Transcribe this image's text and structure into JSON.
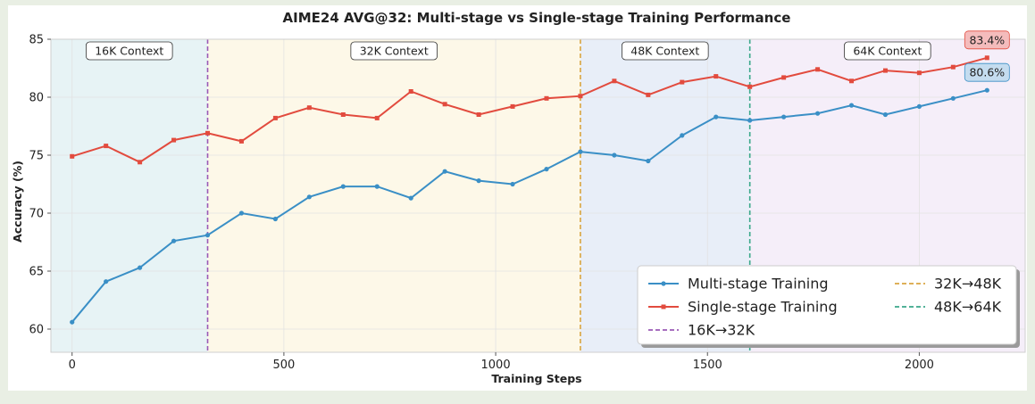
{
  "chart_data": {
    "type": "line",
    "title": "AIME24 AVG@32: Multi-stage vs Single-stage Training Performance",
    "xlabel": "Training Steps",
    "ylabel": "Accuracy (%)",
    "xlim": [
      -50,
      2250
    ],
    "ylim": [
      58,
      85
    ],
    "xticks": [
      0,
      500,
      1000,
      1500,
      2000
    ],
    "yticks": [
      60,
      65,
      70,
      75,
      80,
      85
    ],
    "grid": true,
    "legend_position": "bottom-right",
    "x": [
      0,
      80,
      160,
      240,
      320,
      400,
      480,
      560,
      640,
      720,
      800,
      880,
      960,
      1040,
      1120,
      1200,
      1280,
      1360,
      1440,
      1520,
      1600,
      1680,
      1760,
      1840,
      1920,
      2000,
      2080,
      2160
    ],
    "series": [
      {
        "name": "Multi-stage Training",
        "color": "#3a8fc6",
        "marker": "circle",
        "values": [
          60.6,
          64.1,
          65.3,
          67.6,
          68.1,
          70.0,
          69.5,
          71.4,
          72.3,
          72.3,
          71.3,
          73.6,
          72.8,
          72.5,
          73.8,
          75.3,
          75.0,
          74.5,
          76.7,
          78.3,
          78.0,
          78.3,
          78.6,
          79.3,
          78.5,
          79.2,
          79.9,
          80.6
        ]
      },
      {
        "name": "Single-stage Training",
        "color": "#e24b3e",
        "marker": "square",
        "values": [
          74.9,
          75.8,
          74.4,
          76.3,
          76.9,
          76.2,
          78.2,
          79.1,
          78.5,
          78.2,
          80.5,
          79.4,
          78.5,
          79.2,
          79.9,
          80.1,
          81.4,
          80.2,
          81.3,
          81.8,
          80.9,
          81.7,
          82.4,
          81.4,
          82.3,
          82.1,
          82.6,
          83.4
        ]
      }
    ],
    "stage_boundaries": [
      {
        "x": 320,
        "name": "16K→32K",
        "color": "#9b59b6"
      },
      {
        "x": 1200,
        "name": "32K→48K",
        "color": "#d9a540"
      },
      {
        "x": 1600,
        "name": "48K→64K",
        "color": "#3aa88a"
      }
    ],
    "stage_regions": [
      {
        "from": -50,
        "to": 320,
        "label": "16K Context",
        "fill": "#e7f3f5"
      },
      {
        "from": 320,
        "to": 1200,
        "label": "32K Context",
        "fill": "#fdf8e8"
      },
      {
        "from": 1200,
        "to": 1600,
        "label": "48K Context",
        "fill": "#e8eef8"
      },
      {
        "from": 1600,
        "to": 2250,
        "label": "64K Context",
        "fill": "#f5eef9"
      }
    ],
    "annotations": [
      {
        "text": "83.4%",
        "series": "Single-stage Training",
        "fill": "#f4bcbc",
        "stroke": "#e24b3e"
      },
      {
        "text": "80.6%",
        "series": "Multi-stage Training",
        "fill": "#c4dcef",
        "stroke": "#3a8fc6"
      }
    ]
  }
}
